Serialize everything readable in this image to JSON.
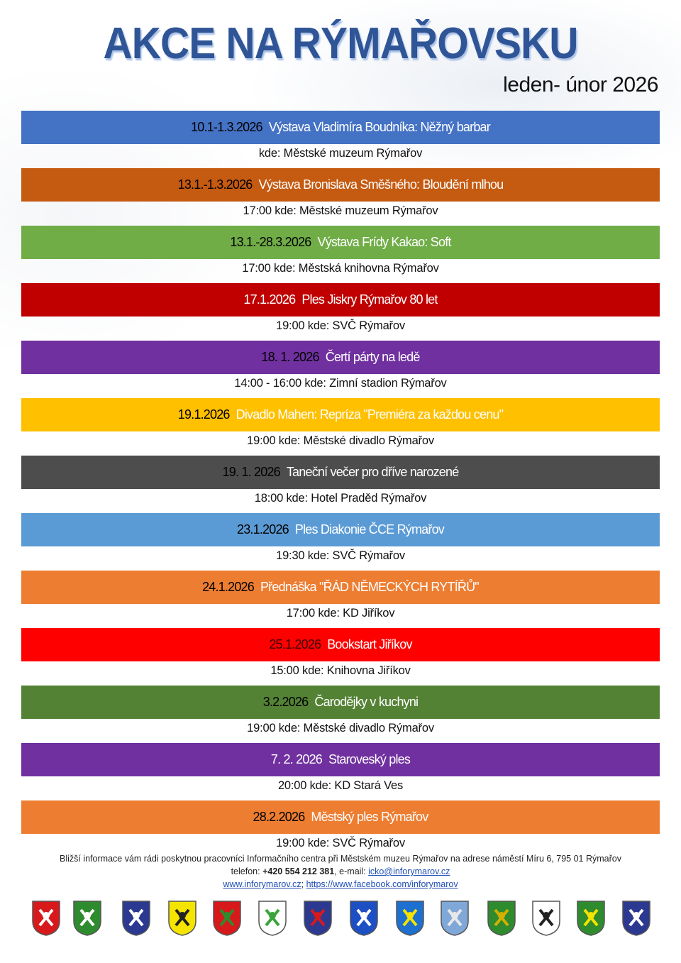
{
  "header": {
    "title": "AKCE NA RÝMAŘOVSKU",
    "period": "leden- únor 2026"
  },
  "events": [
    {
      "date": "10.1-1.3.2026",
      "title": "Výstava Vladimíra Boudníka: Něžný barbar",
      "info": "kde: Městské muzeum Rýmařov",
      "color": "#4472c4",
      "date_color": "#000000"
    },
    {
      "date": "13.1.-1.3.2026",
      "title": "Výstava Bronislava Směšného: Bloudění mlhou",
      "info": "17:00 kde: Městské muzeum Rýmařov",
      "color": "#c55a11",
      "date_color": "#000000"
    },
    {
      "date": "13.1.-28.3.2026",
      "title": "Výstava Frídy Kakao: Soft",
      "info": "17:00 kde: Městská knihovna Rýmařov",
      "color": "#70ad47",
      "date_color": "#000000"
    },
    {
      "date": "17.1.2026",
      "title": "Ples Jiskry Rýmařov 80 let",
      "info": "19:00 kde: SVČ Rýmařov",
      "color": "#c00000",
      "date_color": "#ffffff"
    },
    {
      "date": "18. 1. 2026",
      "title": "Čertí párty na ledě",
      "info": "14:00 - 16:00 kde: Zimní stadion Rýmařov",
      "color": "#7030a0",
      "date_color": "#000000"
    },
    {
      "date": "19.1.2026",
      "title": "Divadlo Mahen: Repríza \"Premiéra za každou cenu\"",
      "info": "19:00 kde: Městské divadlo Rýmařov",
      "color": "#ffc000",
      "date_color": "#000000"
    },
    {
      "date": "19. 1. 2026",
      "title": "Taneční večer pro dříve narozené",
      "info": "18:00 kde: Hotel Praděd Rýmařov",
      "color": "#4d4d4d",
      "date_color": "#000000"
    },
    {
      "date": "23.1.2026",
      "title": "Ples Diakonie ČCE Rýmařov",
      "info": "19:30 kde: SVČ Rýmařov",
      "color": "#5b9bd5",
      "date_color": "#000000"
    },
    {
      "date": "24.1.2026",
      "title": "Přednáška \"ŘÁD NĚMECKÝCH RYTÍŘŮ\"",
      "info": "17:00 kde: KD Jiříkov",
      "color": "#ed7d31",
      "date_color": "#000000"
    },
    {
      "date": "25.1.2026",
      "title": "Bookstart Jiříkov",
      "info": "15:00 kde: Knihovna Jiříkov",
      "color": "#ff0000",
      "date_color": "#3a0000"
    },
    {
      "date": "3.2.2026",
      "title": "Čarodějky v kuchyni",
      "info": "19:00 kde: Městské divadlo Rýmařov",
      "color": "#548235",
      "date_color": "#000000"
    },
    {
      "date": "7. 2. 2026",
      "title": "Staroveský ples",
      "info": "20:00 kde: KD Stará Ves",
      "color": "#7030a0",
      "date_color": "#ffffff"
    },
    {
      "date": "28.2.2026",
      "title": "Městský ples Rýmařov",
      "info": "19:00 kde: SVČ Rýmařov",
      "color": "#ed7d31",
      "date_color": "#000000"
    }
  ],
  "footer": {
    "line1": "Bližší informace vám rádi poskytnou pracovníci Informačního centra při Městském muzeu Rýmařov na adrese náměstí Míru 6, 795 01 Rýmařov",
    "phone_label": "telefon: ",
    "phone": "+420 554 212 381",
    "email_label": ", e-mail: ",
    "email": "icko@inforymarov.cz",
    "web": "www.inforymarov.cz",
    "sep": "; ",
    "facebook": "https://www.facebook.com/inforymarov"
  },
  "coats_of_arms": [
    {
      "bg": "#d7191c",
      "fg": "#ffffff"
    },
    {
      "bg": "#2e8b2e",
      "fg": "#ffffff"
    },
    {
      "bg": "#2b3990",
      "fg": "#ffffff"
    },
    {
      "bg": "#f5e400",
      "fg": "#222222"
    },
    {
      "bg": "#d7191c",
      "fg": "#2e8b2e"
    },
    {
      "bg": "#ffffff",
      "fg": "#3aa33a"
    },
    {
      "bg": "#2b3990",
      "fg": "#d7191c"
    },
    {
      "bg": "#1d4fc4",
      "fg": "#ffffff"
    },
    {
      "bg": "#1d6fd0",
      "fg": "#f5e400"
    },
    {
      "bg": "#7fa8d8",
      "fg": "#e8e8e8"
    },
    {
      "bg": "#2e8b2e",
      "fg": "#d4b000"
    },
    {
      "bg": "#ffffff",
      "fg": "#222222"
    },
    {
      "bg": "#2e8b2e",
      "fg": "#f5e400"
    },
    {
      "bg": "#2b3990",
      "fg": "#ffffff"
    }
  ]
}
